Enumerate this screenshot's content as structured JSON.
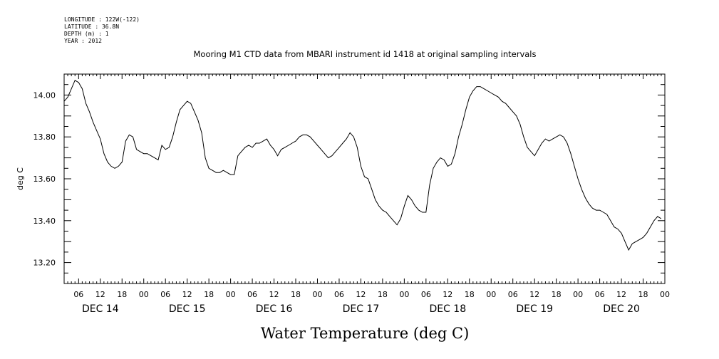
{
  "meta": [
    "LONGITUDE : 122W(-122)",
    "LATITUDE : 36.8N",
    "DEPTH (m) : 1",
    "YEAR : 2012"
  ],
  "chart_data": {
    "type": "line",
    "title": "Mooring M1 CTD data from MBARI instrument id 1418 at original sampling intervals",
    "xlabel": "Water Temperature (deg C)",
    "ylabel": "deg C",
    "xlim_hours": [
      0,
      166
    ],
    "ylim": [
      13.1,
      14.1
    ],
    "y_ticks": [
      13.2,
      13.4,
      13.6,
      13.8,
      14.0
    ],
    "y_tick_labels": [
      "13.20",
      "13.40",
      "13.60",
      "13.80",
      "14.00"
    ],
    "hour_tick_labels": [
      "06",
      "12",
      "18",
      "00",
      "06",
      "12",
      "18",
      "00",
      "06",
      "12",
      "18",
      "00",
      "06",
      "12",
      "18",
      "00",
      "06",
      "12",
      "18",
      "00",
      "06",
      "12",
      "18",
      "00",
      "06",
      "12",
      "18",
      "00"
    ],
    "day_labels": [
      "DEC 14",
      "DEC 15",
      "DEC 16",
      "DEC 17",
      "DEC 18",
      "DEC 19",
      "DEC 20"
    ],
    "series": [
      {
        "color": "#000000",
        "points": [
          [
            0,
            13.97
          ],
          [
            1,
            13.99
          ],
          [
            2,
            14.03
          ],
          [
            3,
            14.07
          ],
          [
            4,
            14.06
          ],
          [
            5,
            14.03
          ],
          [
            6,
            13.96
          ],
          [
            7,
            13.92
          ],
          [
            8,
            13.87
          ],
          [
            9,
            13.83
          ],
          [
            10,
            13.79
          ],
          [
            11,
            13.72
          ],
          [
            12,
            13.68
          ],
          [
            13,
            13.66
          ],
          [
            14,
            13.65
          ],
          [
            15,
            13.66
          ],
          [
            16,
            13.68
          ],
          [
            17,
            13.78
          ],
          [
            18,
            13.81
          ],
          [
            19,
            13.8
          ],
          [
            20,
            13.74
          ],
          [
            21,
            13.73
          ],
          [
            22,
            13.72
          ],
          [
            23,
            13.72
          ],
          [
            24,
            13.71
          ],
          [
            25,
            13.7
          ],
          [
            26,
            13.69
          ],
          [
            27,
            13.76
          ],
          [
            28,
            13.74
          ],
          [
            29,
            13.75
          ],
          [
            30,
            13.8
          ],
          [
            31,
            13.87
          ],
          [
            32,
            13.93
          ],
          [
            33,
            13.95
          ],
          [
            34,
            13.97
          ],
          [
            35,
            13.96
          ],
          [
            36,
            13.92
          ],
          [
            37,
            13.88
          ],
          [
            38,
            13.82
          ],
          [
            39,
            13.7
          ],
          [
            40,
            13.65
          ],
          [
            41,
            13.64
          ],
          [
            42,
            13.63
          ],
          [
            43,
            13.63
          ],
          [
            44,
            13.64
          ],
          [
            45,
            13.63
          ],
          [
            46,
            13.62
          ],
          [
            47,
            13.62
          ],
          [
            48,
            13.71
          ],
          [
            49,
            13.73
          ],
          [
            50,
            13.75
          ],
          [
            51,
            13.76
          ],
          [
            52,
            13.75
          ],
          [
            53,
            13.77
          ],
          [
            54,
            13.77
          ],
          [
            55,
            13.78
          ],
          [
            56,
            13.79
          ],
          [
            57,
            13.76
          ],
          [
            58,
            13.74
          ],
          [
            59,
            13.71
          ],
          [
            60,
            13.74
          ],
          [
            61,
            13.75
          ],
          [
            62,
            13.76
          ],
          [
            63,
            13.77
          ],
          [
            64,
            13.78
          ],
          [
            65,
            13.8
          ],
          [
            66,
            13.81
          ],
          [
            67,
            13.81
          ],
          [
            68,
            13.8
          ],
          [
            69,
            13.78
          ],
          [
            70,
            13.76
          ],
          [
            71,
            13.74
          ],
          [
            72,
            13.72
          ],
          [
            73,
            13.7
          ],
          [
            74,
            13.71
          ],
          [
            75,
            13.73
          ],
          [
            76,
            13.75
          ],
          [
            77,
            13.77
          ],
          [
            78,
            13.79
          ],
          [
            79,
            13.82
          ],
          [
            80,
            13.8
          ],
          [
            81,
            13.75
          ],
          [
            82,
            13.66
          ],
          [
            83,
            13.61
          ],
          [
            84,
            13.6
          ],
          [
            85,
            13.55
          ],
          [
            86,
            13.5
          ],
          [
            87,
            13.47
          ],
          [
            88,
            13.45
          ],
          [
            89,
            13.44
          ],
          [
            90,
            13.42
          ],
          [
            91,
            13.4
          ],
          [
            92,
            13.38
          ],
          [
            93,
            13.41
          ],
          [
            94,
            13.47
          ],
          [
            95,
            13.52
          ],
          [
            96,
            13.5
          ],
          [
            97,
            13.47
          ],
          [
            98,
            13.45
          ],
          [
            99,
            13.44
          ],
          [
            100,
            13.44
          ],
          [
            101,
            13.57
          ],
          [
            102,
            13.65
          ],
          [
            103,
            13.68
          ],
          [
            104,
            13.7
          ],
          [
            105,
            13.69
          ],
          [
            106,
            13.66
          ],
          [
            107,
            13.67
          ],
          [
            108,
            13.72
          ],
          [
            109,
            13.8
          ],
          [
            110,
            13.86
          ],
          [
            111,
            13.93
          ],
          [
            112,
            13.99
          ],
          [
            113,
            14.02
          ],
          [
            114,
            14.04
          ],
          [
            115,
            14.04
          ],
          [
            116,
            14.03
          ],
          [
            117,
            14.02
          ],
          [
            118,
            14.01
          ],
          [
            119,
            14.0
          ],
          [
            120,
            13.99
          ],
          [
            121,
            13.97
          ],
          [
            122,
            13.96
          ],
          [
            123,
            13.94
          ],
          [
            124,
            13.92
          ],
          [
            125,
            13.9
          ],
          [
            126,
            13.86
          ],
          [
            127,
            13.8
          ],
          [
            128,
            13.75
          ],
          [
            129,
            13.73
          ],
          [
            130,
            13.71
          ],
          [
            131,
            13.74
          ],
          [
            132,
            13.77
          ],
          [
            133,
            13.79
          ],
          [
            134,
            13.78
          ],
          [
            135,
            13.79
          ],
          [
            136,
            13.8
          ],
          [
            137,
            13.81
          ],
          [
            138,
            13.8
          ],
          [
            139,
            13.77
          ],
          [
            140,
            13.72
          ],
          [
            141,
            13.66
          ],
          [
            142,
            13.6
          ],
          [
            143,
            13.55
          ],
          [
            144,
            13.51
          ],
          [
            145,
            13.48
          ],
          [
            146,
            13.46
          ],
          [
            147,
            13.45
          ],
          [
            148,
            13.45
          ],
          [
            149,
            13.44
          ],
          [
            150,
            13.43
          ],
          [
            151,
            13.4
          ],
          [
            152,
            13.37
          ],
          [
            153,
            13.36
          ],
          [
            154,
            13.34
          ],
          [
            155,
            13.3
          ],
          [
            156,
            13.26
          ],
          [
            157,
            13.29
          ],
          [
            158,
            13.3
          ],
          [
            159,
            13.31
          ],
          [
            160,
            13.32
          ],
          [
            161,
            13.34
          ],
          [
            162,
            13.37
          ],
          [
            163,
            13.4
          ],
          [
            164,
            13.42
          ],
          [
            165,
            13.41
          ]
        ]
      }
    ]
  }
}
